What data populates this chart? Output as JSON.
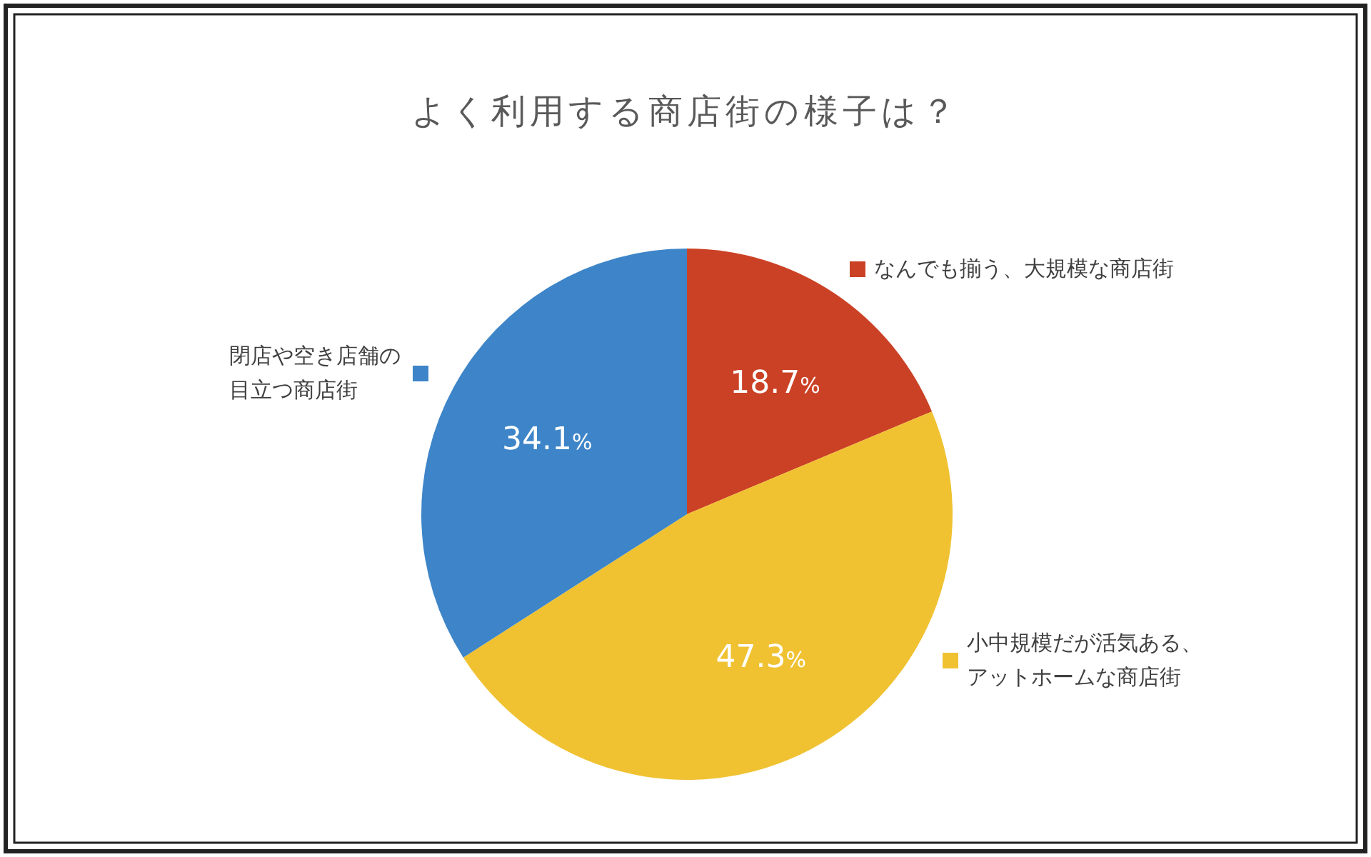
{
  "chart_data": {
    "type": "pie",
    "title": "よく利用する商店街の様子は？",
    "categories": [
      "なんでも揃う、大規模な商店街",
      "小中規模だが活気ある、アットホームな商店街",
      "閉店や空き店舗の目立つ商店街"
    ],
    "legend": "right",
    "values": [
      18.7,
      47.3,
      34.1
    ],
    "colors": [
      "#cb4125",
      "#f0c232",
      "#3d85c8"
    ],
    "value_labels": [
      "18.7%",
      "47.3%",
      "34.1%"
    ]
  }
}
